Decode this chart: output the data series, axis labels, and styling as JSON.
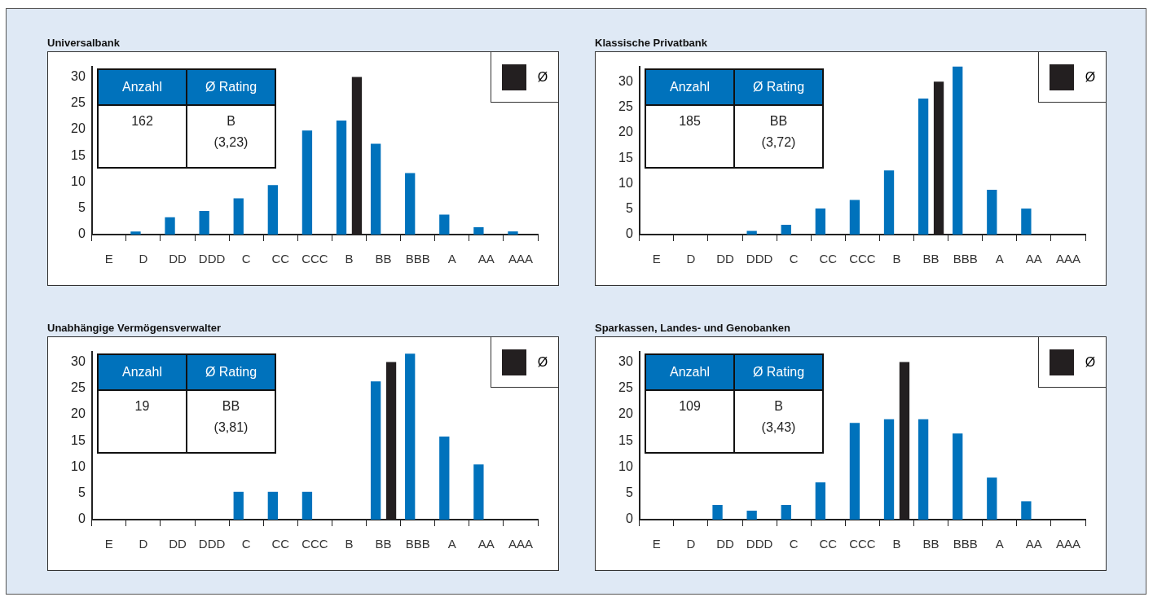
{
  "chart_data": [
    {
      "type": "bar",
      "title": "Universalbank",
      "categories": [
        "E",
        "D",
        "DD",
        "DDD",
        "C",
        "CC",
        "CCC",
        "B",
        "BB",
        "BBB",
        "A",
        "AA",
        "AAA"
      ],
      "series": [
        {
          "color": "#0072bc",
          "values": [
            0,
            0.6,
            3.3,
            4.5,
            6.9,
            9.4,
            19.8,
            21.7,
            17.3,
            11.7,
            3.8,
            1.4,
            0.6
          ]
        },
        {
          "name": "Ø",
          "color": "#231f20",
          "values": [
            null,
            null,
            null,
            null,
            null,
            null,
            null,
            30,
            null,
            null,
            null,
            null,
            null
          ]
        }
      ],
      "ylim": [
        0,
        32
      ],
      "yticks": [
        0,
        5,
        10,
        15,
        20,
        25,
        30
      ],
      "grid": false,
      "legend": "top right",
      "annotations": [
        "Anzahl",
        "Ø Rating",
        "162",
        "B",
        "(3,23)"
      ]
    },
    {
      "type": "bar",
      "title": "Klassische Privatbank",
      "categories": [
        "E",
        "D",
        "DD",
        "DDD",
        "C",
        "CC",
        "CCC",
        "B",
        "BB",
        "BBB",
        "A",
        "AA",
        "AAA"
      ],
      "series": [
        {
          "color": "#0072bc",
          "values": [
            0,
            0,
            0,
            0.7,
            1.9,
            5.1,
            6.8,
            12.6,
            26.7,
            33,
            8.8,
            5.1,
            0
          ]
        },
        {
          "name": "Ø",
          "color": "#231f20",
          "values": [
            null,
            null,
            null,
            null,
            null,
            null,
            null,
            null,
            30,
            null,
            null,
            null,
            null
          ]
        }
      ],
      "ylim": [
        0,
        33
      ],
      "yticks": [
        0,
        5,
        10,
        15,
        20,
        25,
        30
      ],
      "grid": false,
      "legend": "top right",
      "annotations": [
        "Anzahl",
        "Ø Rating",
        "185",
        "BB",
        "(3,72)"
      ]
    },
    {
      "type": "bar",
      "title": "Unabhängige Vermögensverwalter",
      "categories": [
        "E",
        "D",
        "DD",
        "DDD",
        "C",
        "CC",
        "CCC",
        "B",
        "BB",
        "BBB",
        "A",
        "AA",
        "AAA"
      ],
      "series": [
        {
          "color": "#0072bc",
          "values": [
            0,
            0,
            0,
            0,
            5.3,
            5.3,
            5.3,
            0,
            26.3,
            31.6,
            15.8,
            10.5,
            0
          ]
        },
        {
          "name": "Ø",
          "color": "#231f20",
          "values": [
            null,
            null,
            null,
            null,
            null,
            null,
            null,
            null,
            30,
            null,
            null,
            null,
            null
          ]
        }
      ],
      "ylim": [
        0,
        32
      ],
      "yticks": [
        0,
        5,
        10,
        15,
        20,
        25,
        30
      ],
      "grid": false,
      "legend": "top right",
      "annotations": [
        "Anzahl",
        "Ø Rating",
        "19",
        "BB",
        "(3,81)"
      ]
    },
    {
      "type": "bar",
      "title": "Sparkassen, Landes- und Genobanken",
      "categories": [
        "E",
        "D",
        "DD",
        "DDD",
        "C",
        "CC",
        "CCC",
        "B",
        "BB",
        "BBB",
        "A",
        "AA",
        "AAA"
      ],
      "series": [
        {
          "color": "#0072bc",
          "values": [
            0,
            0,
            2.8,
            1.7,
            2.8,
            7.1,
            18.4,
            19.1,
            19.1,
            16.4,
            8.0,
            3.5,
            0
          ]
        },
        {
          "name": "Ø",
          "color": "#231f20",
          "values": [
            null,
            null,
            null,
            null,
            null,
            null,
            null,
            30,
            null,
            null,
            null,
            null,
            null
          ]
        }
      ],
      "ylim": [
        0,
        32
      ],
      "yticks": [
        0,
        5,
        10,
        15,
        20,
        25,
        30
      ],
      "grid": false,
      "legend": "top right",
      "annotations": [
        "Anzahl",
        "Ø Rating",
        "109",
        "B",
        "(3,43)"
      ]
    }
  ]
}
